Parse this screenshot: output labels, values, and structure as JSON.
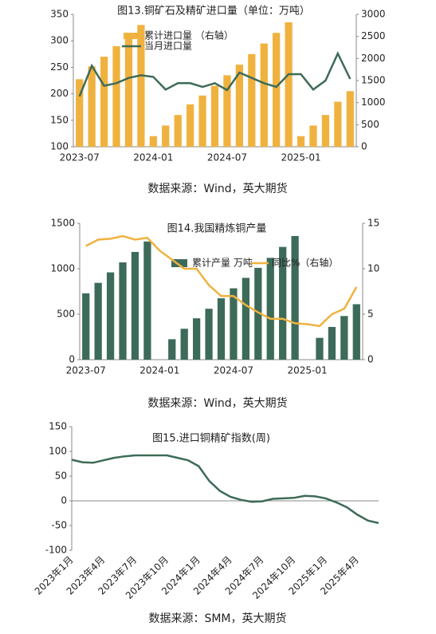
{
  "chart_data": [
    {
      "type": "combo",
      "title": "图13.铜矿石及精矿进口量（单位：万吨）",
      "categories": [
        "2023-07",
        null,
        null,
        null,
        null,
        null,
        "2024-01",
        null,
        null,
        null,
        null,
        null,
        "2024-07",
        null,
        null,
        null,
        null,
        null,
        "2025-01",
        null,
        null,
        null,
        null
      ],
      "ylim": [
        100,
        350
      ],
      "yticks": [
        100,
        150,
        200,
        250,
        300,
        350
      ],
      "y2lim": [
        0,
        3000
      ],
      "y2ticks": [
        0,
        500,
        1000,
        1500,
        2000,
        2500,
        3000
      ],
      "series": [
        {
          "name": "累计进口量 （右轴）",
          "type": "bar",
          "axis": "y2",
          "color": "#f0b23f",
          "values": [
            1530,
            1820,
            2040,
            2280,
            2520,
            2760,
            240,
            480,
            720,
            960,
            1160,
            1380,
            1620,
            1860,
            2100,
            2340,
            2580,
            2820,
            240,
            480,
            720,
            1020,
            1260
          ]
        },
        {
          "name": "当月进口量",
          "type": "line",
          "color": "#3e6b57",
          "values": [
            195,
            253,
            215,
            220,
            230,
            235,
            232,
            208,
            220,
            220,
            213,
            220,
            207,
            240,
            230,
            220,
            213,
            237,
            237,
            208,
            225,
            276,
            228
          ]
        }
      ],
      "legend": "upper center",
      "grid": false,
      "source": "数据来源：Wind，英大期货"
    },
    {
      "type": "combo",
      "title": "图14.我国精炼铜产量",
      "categories": [
        "2023-07",
        null,
        null,
        null,
        null,
        null,
        "2024-01",
        null,
        null,
        null,
        null,
        null,
        "2024-07",
        null,
        null,
        null,
        null,
        null,
        "2025-01",
        null,
        null,
        null,
        null
      ],
      "ylim": [
        0,
        1500
      ],
      "yticks": [
        0,
        500,
        1000,
        1500
      ],
      "y2lim": [
        0,
        15
      ],
      "y2ticks": [
        0,
        5,
        10,
        15
      ],
      "series": [
        {
          "name": "累计产量 万吨",
          "type": "bar",
          "color": "#3d6b5a",
          "values": [
            730,
            845,
            960,
            1070,
            1185,
            1300,
            null,
            225,
            340,
            455,
            560,
            675,
            785,
            900,
            1010,
            1120,
            1240,
            1360,
            null,
            240,
            360,
            480,
            610
          ]
        },
        {
          "name": "同比%（右轴）",
          "type": "line",
          "axis": "y2",
          "color": "#f0b23f",
          "values": [
            12.5,
            13.2,
            13.3,
            13.6,
            13.2,
            13.4,
            12.0,
            11.0,
            10.0,
            10.0,
            8.2,
            7.0,
            7.0,
            6.0,
            5.2,
            4.5,
            4.5,
            4.0,
            3.9,
            3.7,
            5.0,
            5.6,
            8.0
          ]
        }
      ],
      "legend": "upper center",
      "grid": false,
      "source": "数据来源：Wind，英大期货"
    },
    {
      "type": "line",
      "title": "图15.进口铜精矿指数(周)",
      "categories": [
        "2023年1月",
        null,
        null,
        "2023年4月",
        null,
        null,
        "2023年7月",
        null,
        null,
        "2023年10月",
        null,
        null,
        "2024年1月",
        null,
        null,
        "2024年4月",
        null,
        null,
        "2024年7月",
        null,
        null,
        "2024年10月",
        null,
        null,
        "2025年1月",
        null,
        null,
        "2025年4月",
        null,
        null
      ],
      "ylim": [
        -100,
        150
      ],
      "yticks": [
        -100,
        -50,
        0,
        50,
        100,
        150
      ],
      "series": [
        {
          "type": "line",
          "color": "#3e6b57",
          "values": [
            83,
            78,
            77,
            82,
            87,
            90,
            92,
            92,
            92,
            92,
            87,
            82,
            70,
            40,
            20,
            8,
            2,
            -2,
            -1,
            4,
            5,
            6,
            10,
            9,
            5,
            -3,
            -13,
            -28,
            -40,
            -45
          ]
        }
      ],
      "grid": false,
      "source": "数据来源：SMM，英大期货"
    }
  ]
}
